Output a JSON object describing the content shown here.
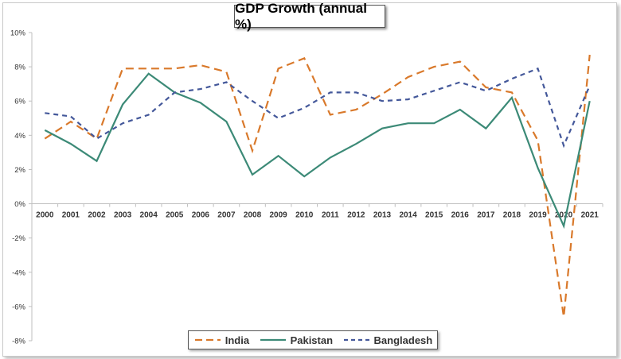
{
  "chart_data": {
    "type": "line",
    "title": "GDP Growth (annual %)",
    "xlabel": "",
    "ylabel": "",
    "x": [
      "2000",
      "2001",
      "2002",
      "2003",
      "2004",
      "2005",
      "2006",
      "2007",
      "2008",
      "2009",
      "2010",
      "2011",
      "2012",
      "2013",
      "2014",
      "2015",
      "2016",
      "2017",
      "2018",
      "2019",
      "2020",
      "2021"
    ],
    "ylim": [
      -8,
      10
    ],
    "yticks": [
      -8,
      -6,
      -4,
      -2,
      0,
      2,
      4,
      6,
      8,
      10
    ],
    "ytick_labels": [
      "-8%",
      "-6%",
      "-4%",
      "-2%",
      "0%",
      "2%",
      "4%",
      "6%",
      "8%",
      "10%"
    ],
    "grid": false,
    "legend_position": "bottom",
    "series": [
      {
        "name": "India",
        "color": "#D9792B",
        "dash": "long-dash",
        "values": [
          3.8,
          4.8,
          3.8,
          7.9,
          7.9,
          7.9,
          8.1,
          7.7,
          3.1,
          7.9,
          8.5,
          5.2,
          5.5,
          6.4,
          7.4,
          8.0,
          8.3,
          6.8,
          6.5,
          3.7,
          -6.6,
          8.7
        ]
      },
      {
        "name": "Pakistan",
        "color": "#3C8A77",
        "dash": "solid",
        "values": [
          4.3,
          3.5,
          2.5,
          5.8,
          7.6,
          6.5,
          5.9,
          4.8,
          1.7,
          2.8,
          1.6,
          2.7,
          3.5,
          4.4,
          4.7,
          4.7,
          5.5,
          4.4,
          6.2,
          2.1,
          -1.3,
          6.0
        ]
      },
      {
        "name": "Bangladesh",
        "color": "#44589A",
        "dash": "short-dash",
        "values": [
          5.3,
          5.1,
          3.8,
          4.7,
          5.2,
          6.5,
          6.7,
          7.1,
          6.0,
          5.0,
          5.6,
          6.5,
          6.5,
          6.0,
          6.1,
          6.6,
          7.1,
          6.6,
          7.3,
          7.9,
          3.4,
          6.9
        ]
      }
    ]
  }
}
